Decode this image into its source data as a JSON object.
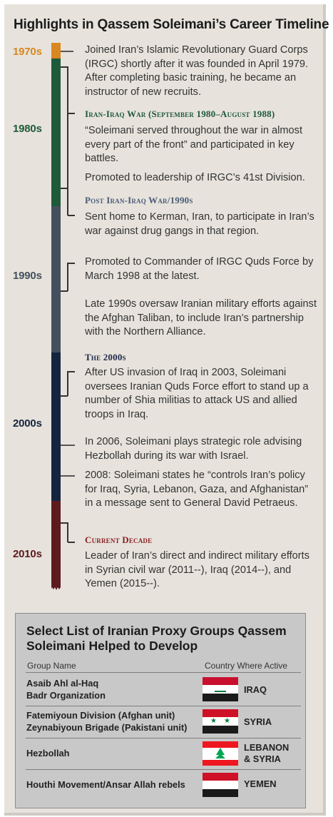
{
  "title": "Highlights in Qassem Soleimani’s Career Timeline",
  "colors": {
    "d1970": "#d9871f",
    "d1980": "#1f5a3a",
    "d1990": "#44505f",
    "d2000": "#16243f",
    "d2010": "#5d1a1f",
    "head_green": "#1f5a3a",
    "head_slate": "#4a5a78",
    "head_navy": "#1f2a4a",
    "head_red": "#8a1e24"
  },
  "decades": [
    "1970s",
    "1980s",
    "1990s",
    "2000s",
    "2010s"
  ],
  "timeline": {
    "p1": "Joined Iran’s Islamic Revolutionary Guard Corps (IRGC) shortly after it was founded in April 1979. After completing basic training, he became an instructor of new recruits.",
    "h_iraq_war": "Iran-Iraq War (September 1980–August 1988)",
    "p2": "“Soleimani served throughout the war in almost every part of the front” and participated in key battles.",
    "p3": "Promoted to leadership of IRGC’s 41st Division.",
    "h_post": "Post Iran-Iraq War/1990s",
    "p4": "Sent home to Kerman, Iran, to participate in Iran’s war against drug gangs in that region.",
    "p5": "Promoted to Commander of IRGC Quds Force by March 1998 at the latest.",
    "p6": "Late 1990s oversaw Iranian military efforts against the Afghan Taliban, to include Iran’s partnership with the Northern Alliance.",
    "h_2000s": "The 2000s",
    "p7": "After US invasion of Iraq in 2003, Soleimani oversees Iranian Quds Force effort to stand up a number of Shia militias to attack US and allied troops in Iraq.",
    "p8": "In 2006, Soleimani plays strategic role advising Hezbollah during its war with Israel.",
    "p9": "2008: Soleimani states he “controls Iran’s policy for Iraq, Syria, Lebanon, Gaza, and Afghanistan” in a message sent to General David Petraeus.",
    "h_current": "Current Decade",
    "p10": "Leader of Iran’s direct and indirect military efforts in Syrian civil war (2011--), Iraq (2014--), and Yemen (2015--)."
  },
  "proxy": {
    "title": "Select List of Iranian Proxy Groups Qassem Soleimani Helped to Develop",
    "col_group": "Group Name",
    "col_country": "Country Where Active",
    "rows": [
      {
        "g1": "Asaib Ahl al-Haq",
        "g2": "Badr Organization",
        "country": "IRAQ",
        "flag": "iraq-flag"
      },
      {
        "g1": "Fatemiyoun Division (Afghan unit)",
        "g2": "Zeynabiyoun Brigade (Pakistani unit)",
        "country": "SYRIA",
        "flag": "syria-flag"
      },
      {
        "g1": "Hezbollah",
        "c1": "LEBANON",
        "c2": "& SYRIA",
        "flag": "lebanon-flag"
      },
      {
        "g1": "Houthi Movement/Ansar Allah rebels",
        "country": "YEMEN",
        "flag": "yemen-flag"
      }
    ]
  }
}
